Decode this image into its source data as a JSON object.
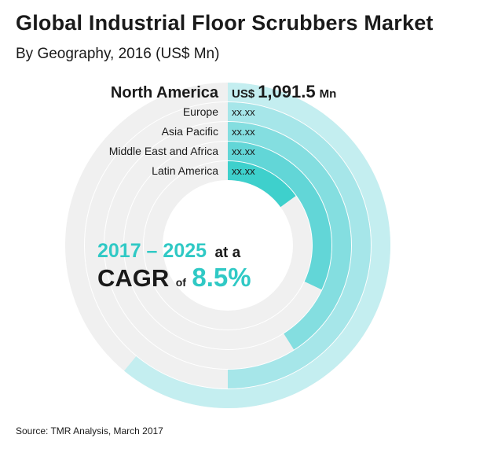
{
  "header": {
    "title": "Global Industrial Floor Scrubbers Market",
    "subtitle": "By Geography, 2016 (US$ Mn)"
  },
  "chart_data": {
    "type": "radial-bar",
    "title": "Global Industrial Floor Scrubbers Market",
    "subtitle": "By Geography, 2016 (US$ Mn)",
    "categories": [
      "North America",
      "Europe",
      "Asia Pacific",
      "Middle East and Africa",
      "Latin America"
    ],
    "value_labels": [
      {
        "prefix": "US$",
        "value": "1,091.5",
        "suffix": "Mn"
      },
      {
        "prefix": "",
        "value": "xx.xx",
        "suffix": ""
      },
      {
        "prefix": "",
        "value": "xx.xx",
        "suffix": ""
      },
      {
        "prefix": "",
        "value": "xx.xx",
        "suffix": ""
      },
      {
        "prefix": "",
        "value": "xx.xx",
        "suffix": ""
      }
    ],
    "relative_share": [
      0.61,
      0.5,
      0.41,
      0.32,
      0.15
    ],
    "colors": [
      "#c4eef0",
      "#a6e6e9",
      "#84dee0",
      "#62d6d7",
      "#3ed0cc"
    ],
    "track_color": "#f0f0f0"
  },
  "cagr": {
    "period": "2017 – 2025",
    "at_a": "at a",
    "label": "CAGR",
    "of": "of",
    "value": "8.5%"
  },
  "footer": {
    "source": "Source: TMR Analysis, March 2017"
  }
}
